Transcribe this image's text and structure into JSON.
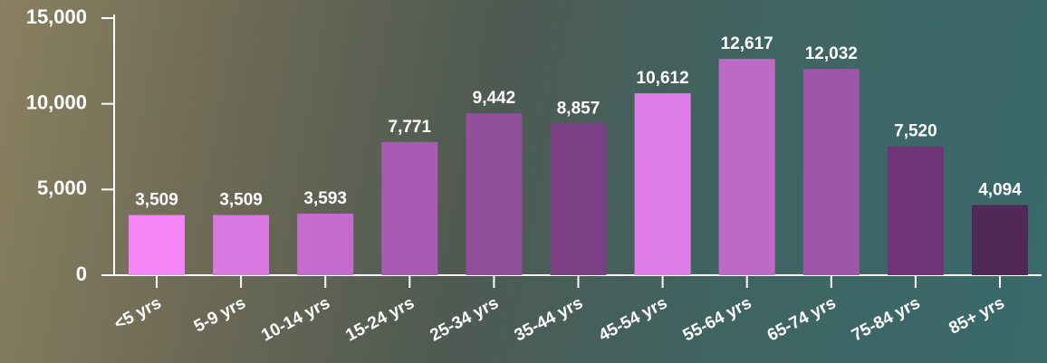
{
  "chart_data": {
    "type": "bar",
    "categories": [
      "<5 yrs",
      "5-9 yrs",
      "10-14 yrs",
      "15-24 yrs",
      "25-34 yrs",
      "35-44 yrs",
      "45-54 yrs",
      "55-64 yrs",
      "65-74 yrs",
      "75-84 yrs",
      "85+ yrs"
    ],
    "values": [
      3509,
      3509,
      3593,
      7771,
      9442,
      8857,
      10612,
      12617,
      12032,
      7520,
      4094
    ],
    "value_labels": [
      "3,509",
      "3,509",
      "3,593",
      "7,771",
      "9,442",
      "8,857",
      "10,612",
      "12,617",
      "12,032",
      "7,520",
      "4,094"
    ],
    "colors": [
      "#f585f7",
      "#d878e0",
      "#c46ccd",
      "#a95ab3",
      "#904e9b",
      "#7b4084",
      "#e07ee9",
      "#bd69c6",
      "#9d56a8",
      "#6f3577",
      "#502957"
    ],
    "ylim": [
      0,
      15000
    ],
    "yticks": [
      0,
      {
        "value": 5000,
        "label": "5,000"
      },
      {
        "value": 10000,
        "label": "10,000"
      },
      {
        "value": 15000,
        "label": "15,000"
      }
    ]
  }
}
